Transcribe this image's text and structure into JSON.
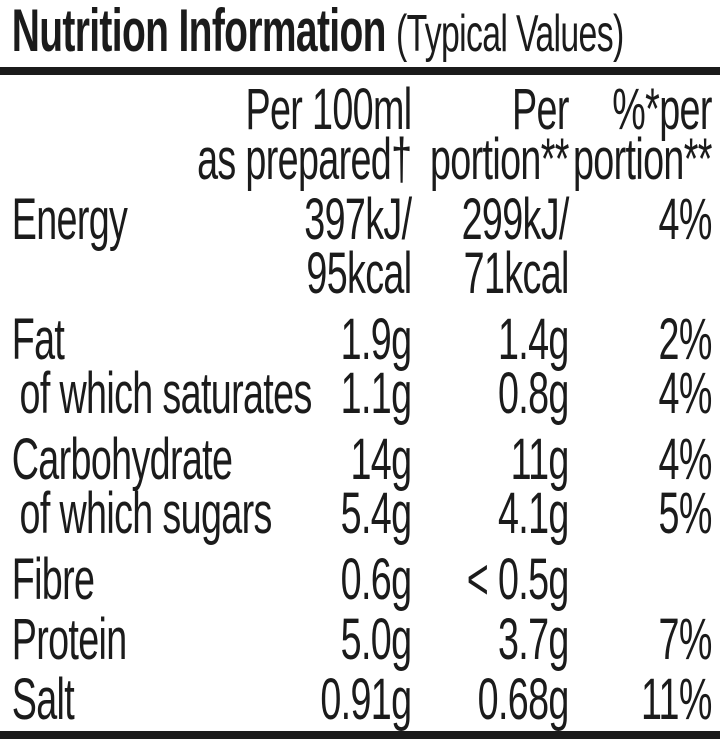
{
  "title": {
    "main": "Nutrition Information",
    "suffix": "(Typical Values)"
  },
  "colors": {
    "text": "#1b1b1b",
    "rule": "#1b1b1b",
    "background": "#ffffff"
  },
  "header": {
    "per100_line1": "Per 100ml",
    "per100_line2": "as prepared†",
    "portion_line1": "Per",
    "portion_line2": "portion**",
    "percent_line1": "%*per",
    "percent_line2": "portion**"
  },
  "rows": [
    {
      "label": "Energy",
      "per100": "397kJ/",
      "per100_line2": "95kcal",
      "portion": "299kJ/",
      "portion_line2": "71kcal",
      "percent": "4%"
    },
    {
      "label": "Fat",
      "per100": "1.9g",
      "portion": "1.4g",
      "percent": "2%"
    },
    {
      "label": "of which saturates",
      "per100": "1.1g",
      "portion": "0.8g",
      "percent": "4%"
    },
    {
      "label": "Carbohydrate",
      "per100": "14g",
      "portion": "11g",
      "percent": "4%"
    },
    {
      "label": "of which sugars",
      "per100": "5.4g",
      "portion": "4.1g",
      "percent": "5%"
    },
    {
      "label": "Fibre",
      "per100": "0.6g",
      "portion": "< 0.5g",
      "percent": ""
    },
    {
      "label": "Protein",
      "per100": "5.0g",
      "portion": "3.7g",
      "percent": "7%"
    },
    {
      "label": "Salt",
      "per100": "0.91g",
      "portion": "0.68g",
      "percent": "11%"
    }
  ]
}
